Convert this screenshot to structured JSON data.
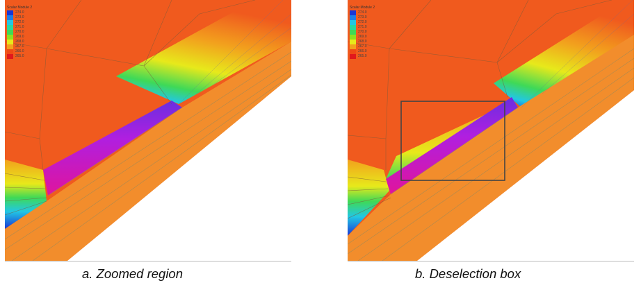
{
  "panels": [
    {
      "legend": {
        "title": "Scalar Module 2",
        "entries": [
          {
            "value": "274.0",
            "color": "#1a36d6"
          },
          {
            "value": "273.0",
            "color": "#1e7fe8"
          },
          {
            "value": "272.0",
            "color": "#22c7e4"
          },
          {
            "value": "271.0",
            "color": "#27d9a0"
          },
          {
            "value": "270.0",
            "color": "#3fd957"
          },
          {
            "value": "269.0",
            "color": "#8fe01f"
          },
          {
            "value": "268.0",
            "color": "#e7e91b"
          },
          {
            "value": "267.0",
            "color": "#f2a11d"
          },
          {
            "value": "266.0",
            "color": "#ef4a16"
          },
          {
            "value": "265.0",
            "color": "#e1191c"
          }
        ]
      },
      "caption": "a. Zoomed region",
      "selection_box": false
    },
    {
      "legend": {
        "title": "Scalar Module 2",
        "entries": [
          {
            "value": "274.0",
            "color": "#1a36d6"
          },
          {
            "value": "273.0",
            "color": "#1e7fe8"
          },
          {
            "value": "272.0",
            "color": "#22c7e4"
          },
          {
            "value": "271.0",
            "color": "#27d9a0"
          },
          {
            "value": "270.0",
            "color": "#3fd957"
          },
          {
            "value": "269.0",
            "color": "#8fe01f"
          },
          {
            "value": "268.0",
            "color": "#e7e91b"
          },
          {
            "value": "267.0",
            "color": "#f2a11d"
          },
          {
            "value": "266.0",
            "color": "#ef4a16"
          },
          {
            "value": "265.0",
            "color": "#e1191c"
          }
        ]
      },
      "caption": "b. Deselection box",
      "selection_box": true
    }
  ],
  "colors": {
    "background_field": "#f05a1e",
    "lower_layer": "#f28d2c",
    "mesh_line": "#8a6a40",
    "selection_box": "#444444"
  }
}
